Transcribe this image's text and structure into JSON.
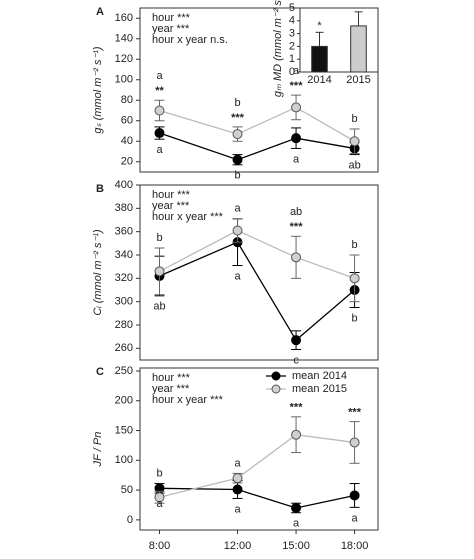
{
  "chart_data": [
    {
      "type": "line",
      "panel_label": "A",
      "y_label": "gₛ (mmol m⁻² s⁻¹)",
      "annotations": [
        "hour ***",
        "year ***",
        "hour x year n.s."
      ],
      "x": [
        8,
        12,
        15,
        18
      ],
      "xlim": [
        7,
        19.2
      ],
      "ylim": [
        10,
        170
      ],
      "yticks": [
        20,
        40,
        60,
        80,
        100,
        120,
        140,
        160
      ],
      "stars": [
        "**",
        "***",
        "***",
        null
      ],
      "series": [
        {
          "color": "#000000",
          "values": [
            48,
            22,
            43,
            33
          ],
          "errors": [
            6,
            5,
            10,
            6
          ],
          "letters": [
            "a",
            "b",
            "a",
            "ab"
          ]
        },
        {
          "color": "#bbbbbb",
          "values": [
            70,
            47,
            73,
            40
          ],
          "errors": [
            10,
            7,
            12,
            12
          ],
          "letters": [
            "a",
            "b",
            "a",
            "b"
          ]
        }
      ]
    },
    {
      "type": "bar",
      "y_label": "gₘ MD (mmol m⁻² s⁻¹)",
      "categories": [
        "2014",
        "2015"
      ],
      "values": [
        2.0,
        3.6
      ],
      "errors": [
        1.1,
        1.1
      ],
      "colors": [
        "#111111",
        "#cccccc"
      ],
      "stars": [
        "*",
        null
      ],
      "ylim": [
        0,
        5
      ],
      "yticks": [
        0,
        1,
        2,
        3,
        4,
        5
      ]
    },
    {
      "type": "line",
      "panel_label": "B",
      "y_label": "Cᵢ (mmol m⁻² s⁻¹)",
      "annotations": [
        "hour ***",
        "year ***",
        "hour x year ***"
      ],
      "x": [
        8,
        12,
        15,
        18
      ],
      "xlim": [
        7,
        19.2
      ],
      "ylim": [
        250,
        400
      ],
      "yticks": [
        260,
        280,
        300,
        320,
        340,
        360,
        380,
        400
      ],
      "stars": [
        null,
        null,
        "***",
        null
      ],
      "series": [
        {
          "color": "#000000",
          "values": [
            322,
            351,
            267,
            310
          ],
          "errors": [
            17,
            20,
            8,
            15
          ],
          "letters": [
            "ab",
            "a",
            "c",
            "b"
          ]
        },
        {
          "color": "#bbbbbb",
          "values": [
            326,
            361,
            338,
            320
          ],
          "errors": [
            20,
            10,
            18,
            20
          ],
          "letters": [
            "b",
            "a",
            "ab",
            "b"
          ]
        }
      ]
    },
    {
      "type": "line",
      "panel_label": "C",
      "y_label": "JF / Pn",
      "annotations": [
        "hour ***",
        "year ***",
        "hour x year ***"
      ],
      "x": [
        8,
        12,
        15,
        18
      ],
      "xlim": [
        7,
        19.2
      ],
      "ylim": [
        -17,
        255
      ],
      "xticks": [
        {
          "value": 8,
          "label": "8:00"
        },
        {
          "value": 12,
          "label": "12:00"
        },
        {
          "value": 15,
          "label": "15:00"
        },
        {
          "value": 18,
          "label": "18:00"
        }
      ],
      "yticks": [
        0,
        50,
        100,
        150,
        200,
        250
      ],
      "stars": [
        null,
        null,
        "***",
        "***"
      ],
      "legend": "upper right",
      "series": [
        {
          "name": "mean 2014",
          "color": "#000000",
          "values": [
            53,
            51,
            20,
            41
          ],
          "errors": [
            8,
            15,
            8,
            20
          ],
          "letters": [
            "a",
            "a",
            "a",
            "a"
          ]
        },
        {
          "name": "mean 2015",
          "color": "#bbbbbb",
          "values": [
            38,
            70,
            143,
            130
          ],
          "errors": [
            10,
            8,
            30,
            35
          ],
          "letters": [
            "b",
            "a",
            null,
            null
          ]
        }
      ]
    }
  ]
}
